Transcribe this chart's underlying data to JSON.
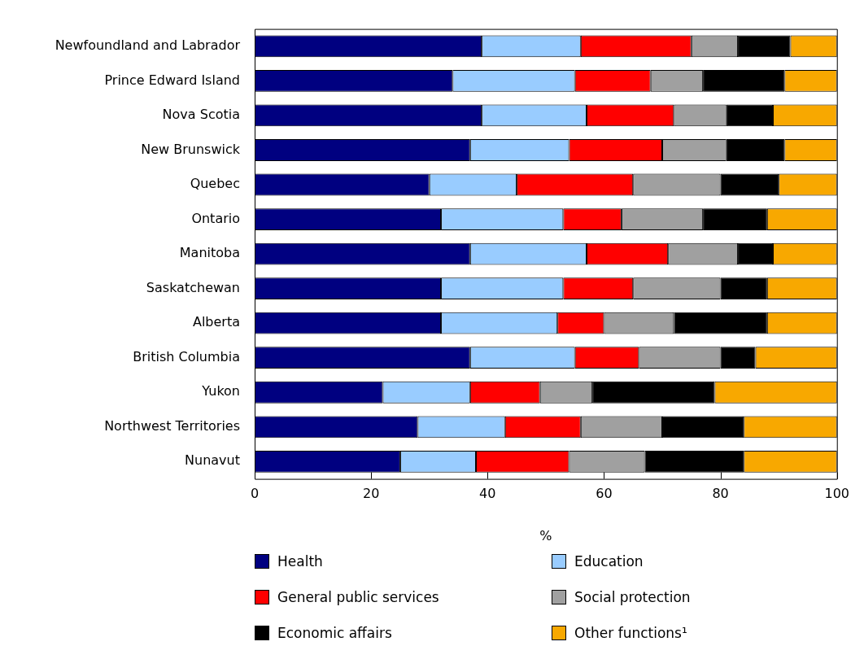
{
  "chart_data": {
    "type": "bar",
    "orientation": "horizontal",
    "stacked": true,
    "categories": [
      "Newfoundland and Labrador",
      "Prince Edward Island",
      "Nova Scotia",
      "New Brunswick",
      "Quebec",
      "Ontario",
      "Manitoba",
      "Saskatchewan",
      "Alberta",
      "British Columbia",
      "Yukon",
      "Northwest Territories",
      "Nunavut"
    ],
    "series": [
      {
        "name": "Health",
        "color": "#000080",
        "values": [
          39,
          34,
          39,
          37,
          30,
          32,
          37,
          32,
          32,
          37,
          22,
          28,
          25
        ]
      },
      {
        "name": "Education",
        "color": "#99ccff",
        "values": [
          17,
          21,
          18,
          17,
          15,
          21,
          20,
          21,
          20,
          18,
          15,
          15,
          13
        ]
      },
      {
        "name": "General public services",
        "color": "#ff0000",
        "values": [
          19,
          13,
          15,
          16,
          20,
          10,
          14,
          12,
          8,
          11,
          12,
          13,
          16
        ]
      },
      {
        "name": "Social protection",
        "color": "#a0a0a0",
        "values": [
          8,
          9,
          9,
          11,
          15,
          14,
          12,
          15,
          12,
          14,
          9,
          14,
          13
        ]
      },
      {
        "name": "Economic affairs",
        "color": "#000000",
        "values": [
          9,
          14,
          8,
          10,
          10,
          11,
          6,
          8,
          16,
          6,
          21,
          14,
          17
        ]
      },
      {
        "name": "Other functions¹",
        "color": "#f8a800",
        "values": [
          8,
          9,
          11,
          9,
          10,
          12,
          11,
          12,
          12,
          14,
          21,
          16,
          16
        ]
      }
    ],
    "xlim": [
      0,
      100
    ],
    "xticks": [
      0,
      20,
      40,
      60,
      80,
      100
    ],
    "xlabel": "%",
    "grid": false,
    "legend": "bottom"
  }
}
